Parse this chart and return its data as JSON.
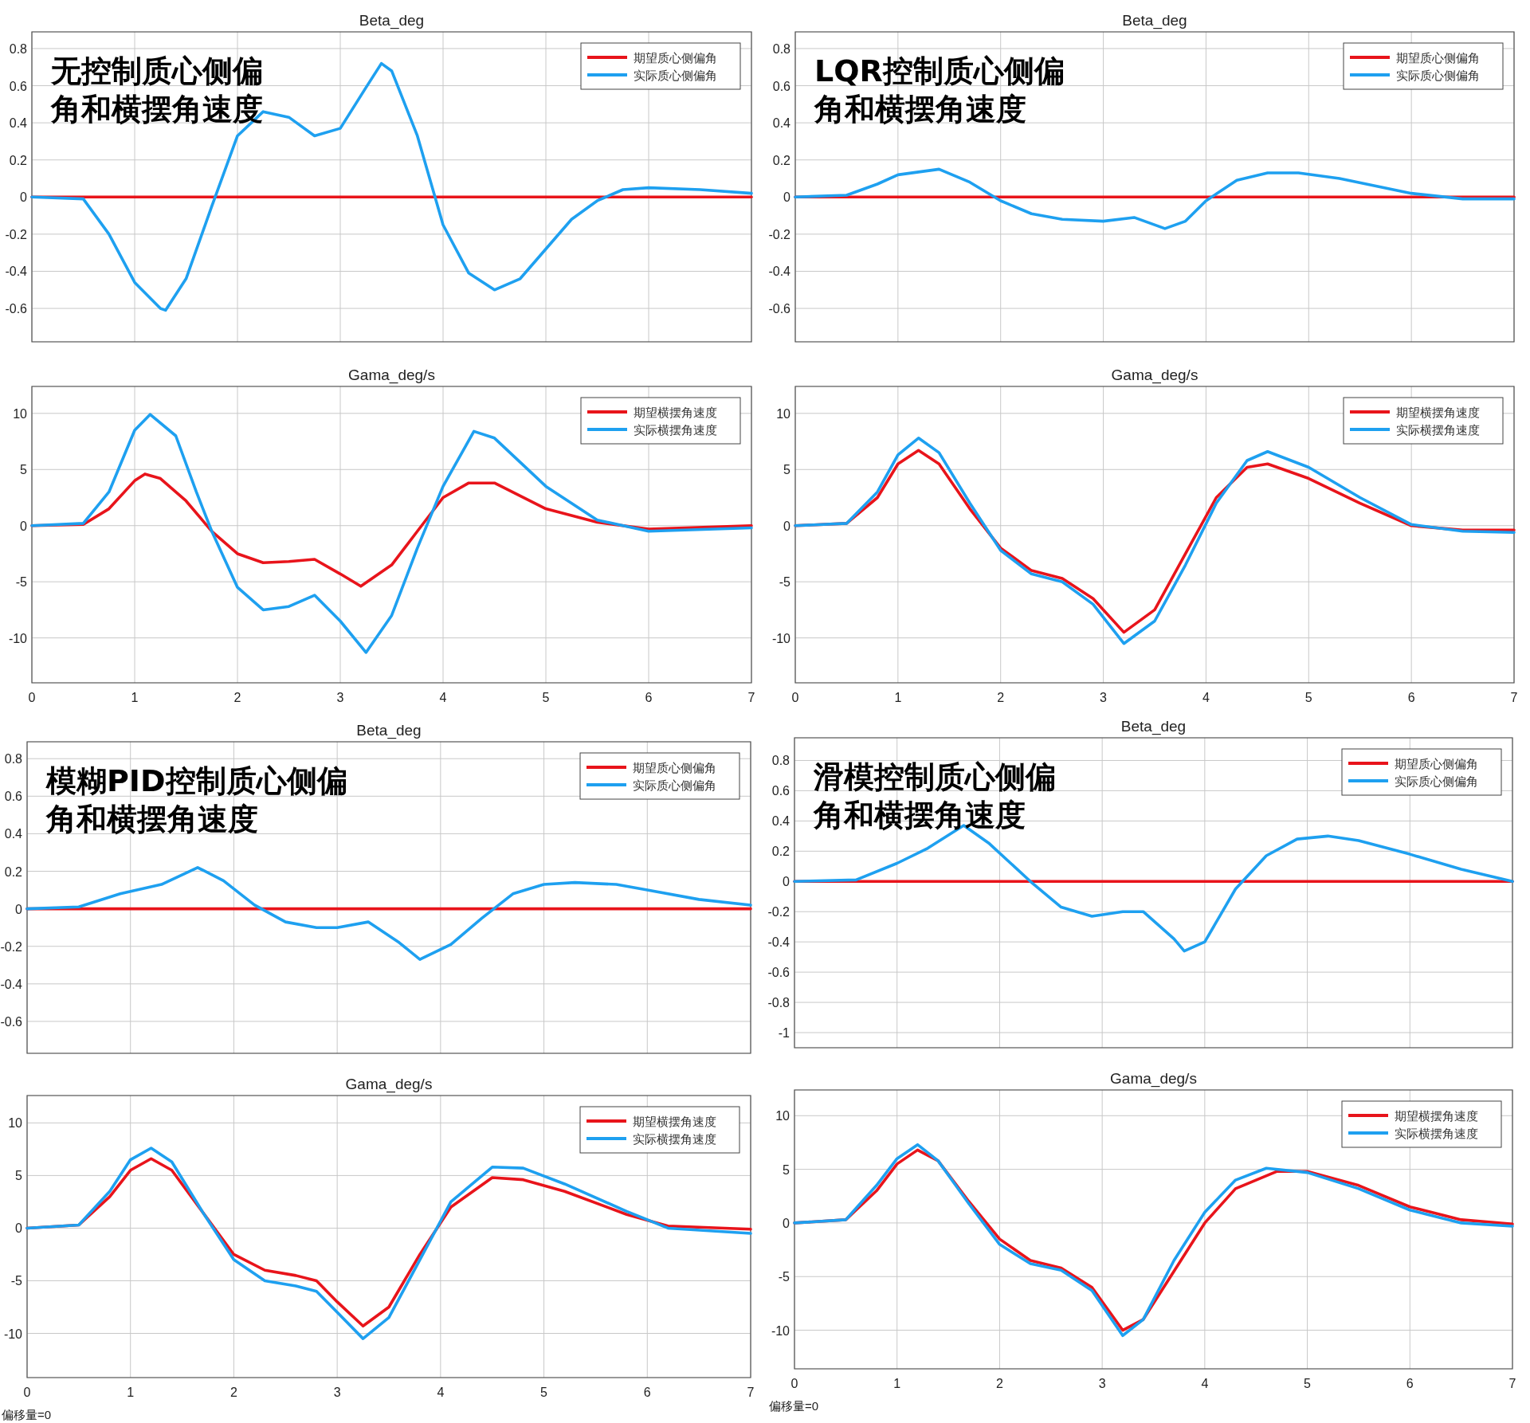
{
  "chart_data": [
    {
      "type": "line",
      "title": "Beta_deg",
      "annotations": [
        "无控制质心侧偏",
        "角和横摆角速度"
      ],
      "xlim": [
        0,
        7
      ],
      "xticks": [
        0,
        1,
        2,
        3,
        4,
        5,
        6,
        7
      ],
      "tick_labels": "y",
      "ylim": [
        -0.78,
        0.89
      ],
      "yticks": [
        -0.6,
        -0.4,
        -0.2,
        0,
        0.2,
        0.4,
        0.6,
        0.8
      ],
      "grid": true,
      "legend": "top right",
      "series": [
        {
          "name": "期望质心侧偏角",
          "color": "#e8141b",
          "x": [
            0,
            7
          ],
          "values": [
            0,
            0
          ]
        },
        {
          "name": "实际质心侧偏角",
          "color": "#1ea0f0",
          "x": [
            0,
            0.5,
            0.75,
            1.0,
            1.25,
            1.3,
            1.5,
            1.75,
            2.0,
            2.25,
            2.5,
            2.75,
            3.0,
            3.25,
            3.4,
            3.5,
            3.75,
            4.0,
            4.25,
            4.5,
            4.75,
            5.0,
            5.25,
            5.5,
            5.75,
            6.0,
            6.5,
            7.0
          ],
          "values": [
            0,
            -0.01,
            -0.2,
            -0.46,
            -0.6,
            -0.61,
            -0.44,
            -0.05,
            0.33,
            0.46,
            0.43,
            0.33,
            0.37,
            0.59,
            0.72,
            0.68,
            0.33,
            -0.15,
            -0.41,
            -0.5,
            -0.44,
            -0.28,
            -0.12,
            -0.02,
            0.04,
            0.05,
            0.04,
            0.02
          ]
        }
      ]
    },
    {
      "type": "line",
      "title": "Beta_deg",
      "annotations": [
        "LQR控制质心侧偏",
        "角和横摆角速度"
      ],
      "xlim": [
        0,
        7
      ],
      "xticks": [
        0,
        1,
        2,
        3,
        4,
        5,
        6,
        7
      ],
      "tick_labels": "y",
      "ylim": [
        -0.78,
        0.89
      ],
      "yticks": [
        -0.6,
        -0.4,
        -0.2,
        0,
        0.2,
        0.4,
        0.6,
        0.8
      ],
      "grid": true,
      "legend": "top right",
      "series": [
        {
          "name": "期望质心侧偏角",
          "color": "#e8141b",
          "x": [
            0,
            7
          ],
          "values": [
            0,
            0
          ]
        },
        {
          "name": "实际质心侧偏角",
          "color": "#1ea0f0",
          "x": [
            0,
            0.5,
            0.8,
            1.0,
            1.4,
            1.7,
            2.0,
            2.3,
            2.6,
            3.0,
            3.3,
            3.6,
            3.8,
            4.0,
            4.3,
            4.6,
            4.9,
            5.3,
            6.0,
            6.5,
            7.0
          ],
          "values": [
            0,
            0.01,
            0.07,
            0.12,
            0.15,
            0.08,
            -0.02,
            -0.09,
            -0.12,
            -0.13,
            -0.11,
            -0.17,
            -0.13,
            -0.02,
            0.09,
            0.13,
            0.13,
            0.1,
            0.02,
            -0.01,
            -0.01
          ]
        }
      ]
    },
    {
      "type": "line",
      "title": "Gama_deg/s",
      "xlim": [
        0,
        7
      ],
      "xticks": [
        0,
        1,
        2,
        3,
        4,
        5,
        6,
        7
      ],
      "ylim": [
        -14,
        12.4
      ],
      "yticks": [
        -10,
        -5,
        0,
        5,
        10
      ],
      "grid": true,
      "legend": "top right",
      "series": [
        {
          "name": "期望横摆角速度",
          "color": "#e8141b",
          "x": [
            0,
            0.5,
            0.75,
            1.0,
            1.1,
            1.25,
            1.5,
            1.75,
            2.0,
            2.25,
            2.5,
            2.75,
            3.0,
            3.2,
            3.5,
            3.75,
            4.0,
            4.25,
            4.5,
            5.0,
            5.5,
            6.0,
            7.0
          ],
          "values": [
            0,
            0.1,
            1.5,
            4,
            4.6,
            4.2,
            2.2,
            -0.5,
            -2.5,
            -3.3,
            -3.2,
            -3.0,
            -4.3,
            -5.4,
            -3.5,
            -0.5,
            2.5,
            3.8,
            3.8,
            1.5,
            0.3,
            -0.3,
            0
          ]
        },
        {
          "name": "实际横摆角速度",
          "color": "#1ea0f0",
          "x": [
            0,
            0.5,
            0.75,
            1.0,
            1.15,
            1.4,
            1.6,
            1.75,
            2.0,
            2.25,
            2.5,
            2.75,
            3.0,
            3.25,
            3.5,
            3.75,
            4.0,
            4.3,
            4.5,
            5.0,
            5.5,
            6.0,
            7.0
          ],
          "values": [
            0,
            0.2,
            3,
            8.5,
            9.9,
            8,
            3,
            -0.5,
            -5.5,
            -7.5,
            -7.2,
            -6.2,
            -8.5,
            -11.3,
            -8,
            -2,
            3.5,
            8.4,
            7.8,
            3.5,
            0.5,
            -0.5,
            -0.2
          ]
        }
      ]
    },
    {
      "type": "line",
      "title": "Gama_deg/s",
      "xlim": [
        0,
        7
      ],
      "xticks": [
        0,
        1,
        2,
        3,
        4,
        5,
        6,
        7
      ],
      "ylim": [
        -14,
        12.4
      ],
      "yticks": [
        -10,
        -5,
        0,
        5,
        10
      ],
      "grid": true,
      "legend": "top right",
      "series": [
        {
          "name": "期望横摆角速度",
          "color": "#e8141b",
          "x": [
            0,
            0.5,
            0.8,
            1.0,
            1.2,
            1.4,
            1.7,
            2.0,
            2.3,
            2.6,
            2.9,
            3.2,
            3.5,
            3.8,
            4.1,
            4.4,
            4.6,
            5.0,
            5.5,
            6.0,
            6.5,
            7.0
          ],
          "values": [
            0,
            0.2,
            2.5,
            5.5,
            6.7,
            5.5,
            1.5,
            -2.0,
            -4.0,
            -4.7,
            -6.5,
            -9.5,
            -7.5,
            -2.5,
            2.5,
            5.2,
            5.5,
            4.2,
            2,
            0,
            -0.4,
            -0.4
          ]
        },
        {
          "name": "实际横摆角速度",
          "color": "#1ea0f0",
          "x": [
            0,
            0.5,
            0.8,
            1.0,
            1.2,
            1.4,
            1.7,
            2.0,
            2.3,
            2.6,
            2.9,
            3.2,
            3.5,
            3.8,
            4.1,
            4.4,
            4.6,
            5.0,
            5.5,
            6.0,
            6.5,
            7.0
          ],
          "values": [
            0,
            0.2,
            3,
            6.3,
            7.8,
            6.5,
            2,
            -2.2,
            -4.3,
            -5.0,
            -7,
            -10.5,
            -8.5,
            -3.5,
            2.0,
            5.8,
            6.6,
            5.2,
            2.5,
            0.1,
            -0.5,
            -0.6
          ]
        }
      ]
    },
    {
      "type": "line",
      "title": "Beta_deg",
      "annotations": [
        "模糊PID控制质心侧偏",
        "角和横摆角速度"
      ],
      "xlim": [
        0,
        7
      ],
      "xticks": [
        0,
        1,
        2,
        3,
        4,
        5,
        6,
        7
      ],
      "tick_labels": "y",
      "ylim": [
        -0.77,
        0.89
      ],
      "yticks": [
        -0.6,
        -0.4,
        -0.2,
        0,
        0.2,
        0.4,
        0.6,
        0.8
      ],
      "grid": true,
      "legend": "top right",
      "series": [
        {
          "name": "期望质心侧偏角",
          "color": "#e8141b",
          "x": [
            0,
            7
          ],
          "values": [
            0,
            0
          ]
        },
        {
          "name": "实际质心侧偏角",
          "color": "#1ea0f0",
          "x": [
            0,
            0.5,
            0.9,
            1.3,
            1.65,
            1.9,
            2.2,
            2.5,
            2.8,
            3.0,
            3.3,
            3.6,
            3.8,
            4.1,
            4.4,
            4.7,
            5.0,
            5.3,
            5.7,
            6.0,
            6.5,
            7.0
          ],
          "values": [
            0,
            0.01,
            0.08,
            0.13,
            0.22,
            0.15,
            0.02,
            -0.07,
            -0.1,
            -0.1,
            -0.07,
            -0.18,
            -0.27,
            -0.19,
            -0.05,
            0.08,
            0.13,
            0.14,
            0.13,
            0.1,
            0.05,
            0.02
          ]
        }
      ]
    },
    {
      "type": "line",
      "title": "Beta_deg",
      "annotations": [
        "滑模控制质心侧偏",
        "角和横摆角速度"
      ],
      "xlim": [
        0,
        7
      ],
      "xticks": [
        0,
        1,
        2,
        3,
        4,
        5,
        6,
        7
      ],
      "tick_labels": "y",
      "ylim": [
        -1.1,
        0.95
      ],
      "yticks": [
        -1,
        -0.8,
        -0.6,
        -0.4,
        -0.2,
        0,
        0.2,
        0.4,
        0.6,
        0.8
      ],
      "grid": true,
      "legend": "top right",
      "series": [
        {
          "name": "期望质心侧偏角",
          "color": "#e8141b",
          "x": [
            0,
            7
          ],
          "values": [
            0,
            0
          ]
        },
        {
          "name": "实际质心侧偏角",
          "color": "#1ea0f0",
          "x": [
            0,
            0.6,
            1.0,
            1.3,
            1.65,
            1.9,
            2.3,
            2.6,
            2.9,
            3.2,
            3.4,
            3.7,
            3.8,
            4.0,
            4.3,
            4.6,
            4.9,
            5.2,
            5.5,
            6.0,
            6.5,
            7.0
          ],
          "values": [
            0,
            0.01,
            0.12,
            0.22,
            0.37,
            0.25,
            0,
            -0.17,
            -0.23,
            -0.2,
            -0.2,
            -0.38,
            -0.46,
            -0.4,
            -0.05,
            0.17,
            0.28,
            0.3,
            0.27,
            0.18,
            0.08,
            0
          ]
        }
      ]
    },
    {
      "type": "line",
      "title": "Gama_deg/s",
      "annotations": [
        "偏移量=0"
      ],
      "xlim": [
        0,
        7
      ],
      "xticks": [
        0,
        1,
        2,
        3,
        4,
        5,
        6,
        7
      ],
      "ylim": [
        -14.2,
        12.6
      ],
      "yticks": [
        -10,
        -5,
        0,
        5,
        10
      ],
      "grid": true,
      "legend": "top right",
      "series": [
        {
          "name": "期望横摆角速度",
          "color": "#e8141b",
          "x": [
            0,
            0.5,
            0.8,
            1.0,
            1.2,
            1.4,
            1.7,
            2.0,
            2.3,
            2.6,
            2.8,
            3.0,
            3.25,
            3.5,
            3.8,
            4.1,
            4.5,
            4.8,
            5.2,
            5.8,
            6.2,
            7.0
          ],
          "values": [
            0,
            0.3,
            3,
            5.5,
            6.6,
            5.5,
            1.5,
            -2.5,
            -4,
            -4.5,
            -5,
            -7,
            -9.3,
            -7.5,
            -2.5,
            2,
            4.8,
            4.6,
            3.5,
            1.3,
            0.2,
            -0.1
          ]
        },
        {
          "name": "实际横摆角速度",
          "color": "#1ea0f0",
          "x": [
            0,
            0.5,
            0.8,
            1.0,
            1.2,
            1.4,
            1.7,
            2.0,
            2.3,
            2.6,
            2.8,
            3.0,
            3.25,
            3.5,
            3.8,
            4.1,
            4.5,
            4.8,
            5.2,
            5.8,
            6.2,
            7.0
          ],
          "values": [
            0,
            0.3,
            3.5,
            6.5,
            7.6,
            6.3,
            1.5,
            -3,
            -5,
            -5.5,
            -6,
            -8,
            -10.5,
            -8.5,
            -3,
            2.5,
            5.8,
            5.7,
            4.2,
            1.6,
            0,
            -0.5
          ]
        }
      ]
    },
    {
      "type": "line",
      "title": "Gama_deg/s",
      "annotations": [
        "偏移量=0"
      ],
      "xlim": [
        0,
        7
      ],
      "xticks": [
        0,
        1,
        2,
        3,
        4,
        5,
        6,
        7
      ],
      "ylim": [
        -13.6,
        12.4
      ],
      "yticks": [
        -10,
        -5,
        0,
        5,
        10
      ],
      "grid": true,
      "legend": "top right",
      "series": [
        {
          "name": "期望横摆角速度",
          "color": "#e8141b",
          "x": [
            0,
            0.5,
            0.8,
            1.0,
            1.2,
            1.4,
            1.7,
            2.0,
            2.3,
            2.6,
            2.9,
            3.2,
            3.4,
            3.7,
            4.0,
            4.3,
            4.7,
            5.0,
            5.5,
            6.0,
            6.5,
            7.0
          ],
          "values": [
            0,
            0.3,
            3,
            5.5,
            6.8,
            5.8,
            2,
            -1.5,
            -3.5,
            -4.2,
            -6,
            -10,
            -9,
            -4.5,
            0,
            3.2,
            4.8,
            4.8,
            3.5,
            1.5,
            0.3,
            -0.1
          ]
        },
        {
          "name": "实际横摆角速度",
          "color": "#1ea0f0",
          "x": [
            0,
            0.5,
            0.8,
            1.0,
            1.2,
            1.4,
            1.7,
            2.0,
            2.3,
            2.6,
            2.9,
            3.2,
            3.4,
            3.7,
            4.0,
            4.3,
            4.6,
            5.0,
            5.5,
            6.0,
            6.5,
            7.0
          ],
          "values": [
            0,
            0.3,
            3.5,
            6,
            7.3,
            5.8,
            1.8,
            -2,
            -3.8,
            -4.4,
            -6.3,
            -10.5,
            -9,
            -3.5,
            1,
            4,
            5.1,
            4.7,
            3.2,
            1.2,
            0,
            -0.3
          ]
        }
      ]
    }
  ]
}
